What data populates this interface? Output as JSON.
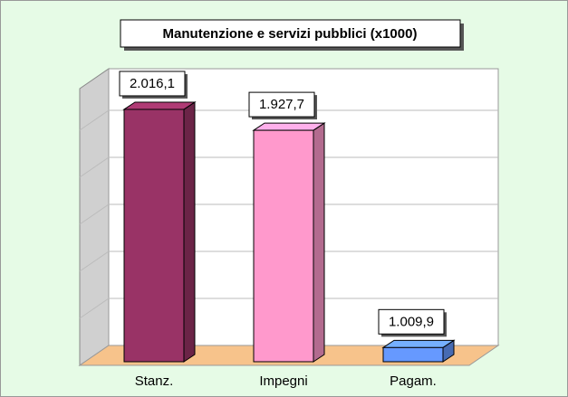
{
  "chart_data": {
    "type": "bar3d",
    "title": "Manutenzione e servizi pubblici (x1000)",
    "categories": [
      "Stanz.",
      "Impegni",
      "Pagam."
    ],
    "values": [
      2016.1,
      1927.7,
      1009.9
    ],
    "value_labels": [
      "2.016,1",
      "1.927,7",
      "1.009,9"
    ],
    "colors": [
      "#993366",
      "#ff99cc",
      "#6699ff"
    ],
    "ylim": [
      950,
      2100
    ]
  }
}
